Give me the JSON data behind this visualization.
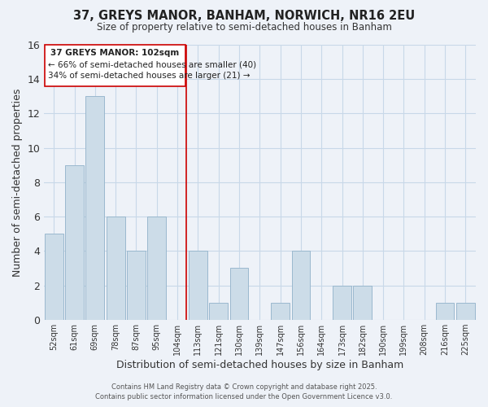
{
  "title": "37, GREYS MANOR, BANHAM, NORWICH, NR16 2EU",
  "subtitle": "Size of property relative to semi-detached houses in Banham",
  "xlabel": "Distribution of semi-detached houses by size in Banham",
  "ylabel": "Number of semi-detached properties",
  "bar_labels": [
    "52sqm",
    "61sqm",
    "69sqm",
    "78sqm",
    "87sqm",
    "95sqm",
    "104sqm",
    "113sqm",
    "121sqm",
    "130sqm",
    "139sqm",
    "147sqm",
    "156sqm",
    "164sqm",
    "173sqm",
    "182sqm",
    "190sqm",
    "199sqm",
    "208sqm",
    "216sqm",
    "225sqm"
  ],
  "bar_values": [
    5,
    9,
    13,
    6,
    4,
    6,
    0,
    4,
    1,
    3,
    0,
    1,
    4,
    0,
    2,
    2,
    0,
    0,
    0,
    1,
    1
  ],
  "highlight_index": 6,
  "bar_color": "#ccdce8",
  "bar_edge_color": "#9ab8ce",
  "highlight_line_color": "#cc0000",
  "grid_color": "#c8d8e8",
  "background_color": "#eef2f8",
  "ylim": [
    0,
    16
  ],
  "yticks": [
    0,
    2,
    4,
    6,
    8,
    10,
    12,
    14,
    16
  ],
  "annotation_title": "37 GREYS MANOR: 102sqm",
  "annotation_line1": "← 66% of semi-detached houses are smaller (40)",
  "annotation_line2": "34% of semi-detached houses are larger (21) →",
  "annotation_box_color": "#ffffff",
  "annotation_box_edge": "#cc0000",
  "footer_line1": "Contains HM Land Registry data © Crown copyright and database right 2025.",
  "footer_line2": "Contains public sector information licensed under the Open Government Licence v3.0."
}
